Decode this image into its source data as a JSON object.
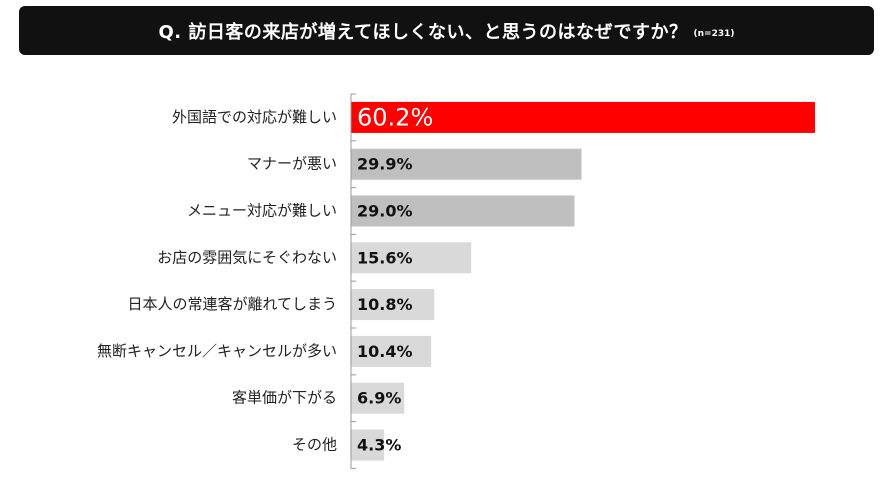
{
  "header": {
    "title": "Q. 訪日客の来店が増えてほしくない、と思うのはなぜですか？",
    "sample": "(n=231)"
  },
  "chart_data": {
    "type": "bar",
    "orientation": "horizontal",
    "title": "Q. 訪日客の来店が増えてほしくない、と思うのはなぜですか？",
    "subtitle": "(n=231)",
    "categories": [
      "外国語での対応が難しい",
      "マナーが悪い",
      "メニュー対応が難しい",
      "お店の雰囲気にそぐわない",
      "日本人の常連客が離れてしまう",
      "無断キャンセル／キャンセルが多い",
      "客単価が下がる",
      "その他"
    ],
    "values": [
      60.2,
      29.9,
      29.0,
      15.6,
      10.8,
      10.4,
      6.9,
      4.3
    ],
    "value_labels": [
      "60.2%",
      "29.9%",
      "29.0%",
      "15.6%",
      "10.8%",
      "10.4%",
      "6.9%",
      "4.3%"
    ],
    "unit": "%",
    "colors": [
      "#ff0000",
      "#bfbfbf",
      "#bfbfbf",
      "#d9d9d9",
      "#d9d9d9",
      "#d9d9d9",
      "#d9d9d9",
      "#d9d9d9"
    ],
    "label_colors": [
      "#ffffff",
      "#111111",
      "#111111",
      "#111111",
      "#111111",
      "#111111",
      "#111111",
      "#111111"
    ],
    "xlim": [
      0,
      62.8
    ],
    "grid": false,
    "legend": "none"
  }
}
